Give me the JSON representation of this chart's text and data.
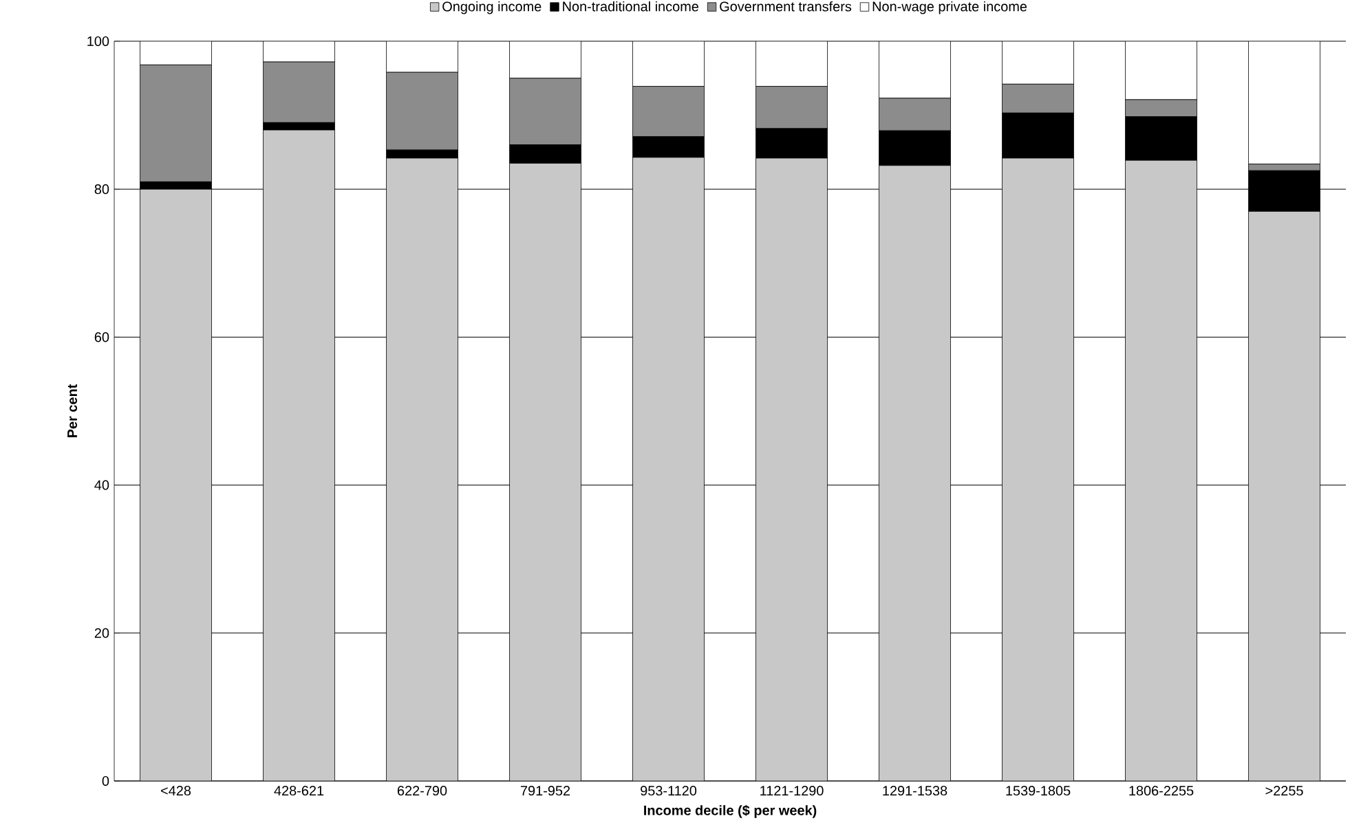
{
  "chart_data": {
    "type": "bar",
    "stacked": true,
    "xlabel": "Income decile ($ per week)",
    "ylabel": "Per cent",
    "categories": [
      "<428",
      "428-621",
      "622-790",
      "791-952",
      "953-1120",
      "1121-1290",
      "1291-1538",
      "1539-1805",
      "1806-2255",
      ">2255"
    ],
    "series": [
      {
        "name": "Ongoing income",
        "color": "#c8c8c8",
        "values": [
          80,
          88,
          84.2,
          83.5,
          84.3,
          84.2,
          83.2,
          84.2,
          83.9,
          77
        ]
      },
      {
        "name": "Non-traditional income",
        "color": "#000000",
        "values": [
          1,
          1,
          1.1,
          2.5,
          2.8,
          4,
          4.7,
          6.1,
          5.9,
          5.5
        ]
      },
      {
        "name": "Government transfers",
        "color": "#8c8c8c",
        "values": [
          15.8,
          8.2,
          10.5,
          9,
          6.8,
          5.7,
          4.4,
          3.9,
          2.3,
          0.9
        ]
      },
      {
        "name": "Non-wage private income",
        "color": "#ffffff",
        "values": [
          3.2,
          2.8,
          4.2,
          5,
          6.1,
          6.1,
          7.7,
          5.8,
          7.9,
          16.6
        ]
      }
    ],
    "ylim": [
      0,
      100
    ],
    "yticks": [
      0,
      20,
      40,
      60,
      80,
      100
    ],
    "grid": "y",
    "legend": "top"
  }
}
